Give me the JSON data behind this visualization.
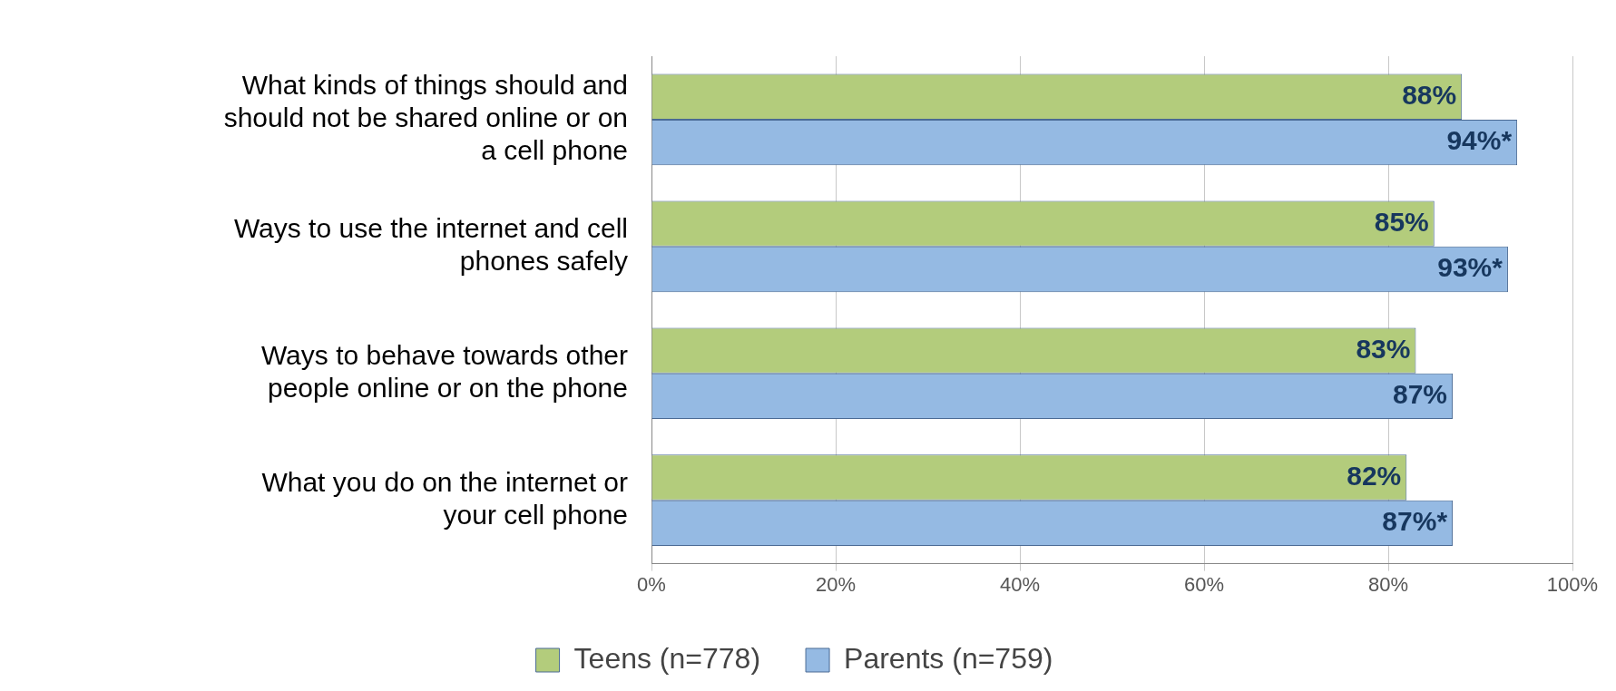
{
  "chart_data": {
    "type": "bar",
    "orientation": "horizontal",
    "categories": [
      "What kinds of things should and should not be shared online or on a cell phone",
      "Ways to use the internet and cell phones safely",
      "Ways to behave towards other people online or on the phone",
      "What you do on the internet or your cell phone"
    ],
    "series": [
      {
        "name": "Teens (n=778)",
        "color": "#b3cc7c",
        "values": [
          88,
          85,
          83,
          82
        ],
        "value_labels": [
          "88%",
          "85%",
          "83%",
          "82%"
        ]
      },
      {
        "name": "Parents (n=759)",
        "color": "#95bae3",
        "values": [
          94,
          93,
          87,
          87
        ],
        "value_labels": [
          "94%*",
          "93%*",
          "87%",
          "87%*"
        ]
      }
    ],
    "xlim": [
      0,
      100
    ],
    "xticks": [
      {
        "value": 0,
        "label": "0%"
      },
      {
        "value": 20,
        "label": "20%"
      },
      {
        "value": 40,
        "label": "40%"
      },
      {
        "value": 60,
        "label": "60%"
      },
      {
        "value": 80,
        "label": "80%"
      },
      {
        "value": 100,
        "label": "100%"
      }
    ],
    "grid": "x",
    "legend": "bottom"
  }
}
